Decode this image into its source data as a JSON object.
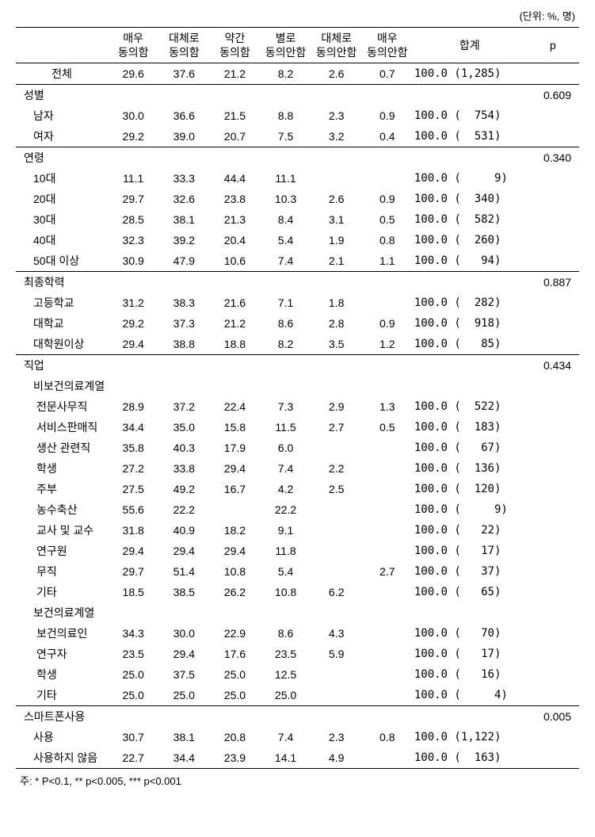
{
  "unit_label": "(단위: %, 명)",
  "headers": {
    "blank": "",
    "c1": "매우\n동의함",
    "c2": "대체로\n동의함",
    "c3": "약간\n동의함",
    "c4": "별로\n동의안함",
    "c5": "대체로\n동의안함",
    "c6": "매우\n동의안함",
    "sum": "합계",
    "p": "p"
  },
  "total_row": {
    "label": "전체",
    "v": [
      "29.6",
      "37.6",
      "21.2",
      "8.2",
      "2.6",
      "0.7"
    ],
    "sum": "100.0 (1,285)",
    "p": ""
  },
  "sections": [
    {
      "header": "성별",
      "p": "0.609",
      "rows": [
        {
          "label": "남자",
          "indent": 1,
          "v": [
            "30.0",
            "36.6",
            "21.5",
            "8.8",
            "2.3",
            "0.9"
          ],
          "sum": "100.0 (  754)"
        },
        {
          "label": "여자",
          "indent": 1,
          "v": [
            "29.2",
            "39.0",
            "20.7",
            "7.5",
            "3.2",
            "0.4"
          ],
          "sum": "100.0 (  531)"
        }
      ]
    },
    {
      "header": "연령",
      "p": "0.340",
      "rows": [
        {
          "label": "10대",
          "indent": 1,
          "v": [
            "11.1",
            "33.3",
            "44.4",
            "11.1",
            "",
            ""
          ],
          "sum": "100.0 (     9)"
        },
        {
          "label": "20대",
          "indent": 1,
          "v": [
            "29.7",
            "32.6",
            "23.8",
            "10.3",
            "2.6",
            "0.9"
          ],
          "sum": "100.0 (  340)"
        },
        {
          "label": "30대",
          "indent": 1,
          "v": [
            "28.5",
            "38.1",
            "21.3",
            "8.4",
            "3.1",
            "0.5"
          ],
          "sum": "100.0 (  582)"
        },
        {
          "label": "40대",
          "indent": 1,
          "v": [
            "32.3",
            "39.2",
            "20.4",
            "5.4",
            "1.9",
            "0.8"
          ],
          "sum": "100.0 (  260)"
        },
        {
          "label": "50대 이상",
          "indent": 1,
          "v": [
            "30.9",
            "47.9",
            "10.6",
            "7.4",
            "2.1",
            "1.1"
          ],
          "sum": "100.0 (   94)"
        }
      ]
    },
    {
      "header": "최종학력",
      "p": "0.887",
      "rows": [
        {
          "label": "고등학교",
          "indent": 1,
          "v": [
            "31.2",
            "38.3",
            "21.6",
            "7.1",
            "1.8",
            ""
          ],
          "sum": "100.0 (  282)"
        },
        {
          "label": "대학교",
          "indent": 1,
          "v": [
            "29.2",
            "37.3",
            "21.2",
            "8.6",
            "2.8",
            "0.9"
          ],
          "sum": "100.0 (  918)"
        },
        {
          "label": "대학원이상",
          "indent": 1,
          "v": [
            "29.4",
            "38.8",
            "18.8",
            "8.2",
            "3.5",
            "1.2"
          ],
          "sum": "100.0 (   85)"
        }
      ]
    },
    {
      "header": "직업",
      "p": "0.434",
      "subgroups": [
        {
          "label": "비보건의료계열",
          "rows": [
            {
              "label": "전문사무직",
              "indent": 2,
              "v": [
                "28.9",
                "37.2",
                "22.4",
                "7.3",
                "2.9",
                "1.3"
              ],
              "sum": "100.0 (  522)"
            },
            {
              "label": "서비스판매직",
              "indent": 2,
              "v": [
                "34.4",
                "35.0",
                "15.8",
                "11.5",
                "2.7",
                "0.5"
              ],
              "sum": "100.0 (  183)"
            },
            {
              "label": "생산 관련직",
              "indent": 2,
              "v": [
                "35.8",
                "40.3",
                "17.9",
                "6.0",
                "",
                ""
              ],
              "sum": "100.0 (   67)"
            },
            {
              "label": "학생",
              "indent": 2,
              "v": [
                "27.2",
                "33.8",
                "29.4",
                "7.4",
                "2.2",
                ""
              ],
              "sum": "100.0 (  136)"
            },
            {
              "label": "주부",
              "indent": 2,
              "v": [
                "27.5",
                "49.2",
                "16.7",
                "4.2",
                "2.5",
                ""
              ],
              "sum": "100.0 (  120)"
            },
            {
              "label": "농수축산",
              "indent": 2,
              "v": [
                "55.6",
                "22.2",
                "",
                "22.2",
                "",
                ""
              ],
              "sum": "100.0 (     9)"
            },
            {
              "label": "교사 및 교수",
              "indent": 2,
              "v": [
                "31.8",
                "40.9",
                "18.2",
                "9.1",
                "",
                ""
              ],
              "sum": "100.0 (   22)"
            },
            {
              "label": "연구원",
              "indent": 2,
              "v": [
                "29.4",
                "29.4",
                "29.4",
                "11.8",
                "",
                ""
              ],
              "sum": "100.0 (   17)"
            },
            {
              "label": "무직",
              "indent": 2,
              "v": [
                "29.7",
                "51.4",
                "10.8",
                "5.4",
                "",
                "2.7"
              ],
              "sum": "100.0 (   37)"
            },
            {
              "label": "기타",
              "indent": 2,
              "v": [
                "18.5",
                "38.5",
                "26.2",
                "10.8",
                "6.2",
                ""
              ],
              "sum": "100.0 (   65)"
            }
          ]
        },
        {
          "label": "보건의료계열",
          "rows": [
            {
              "label": "보건의료인",
              "indent": 2,
              "v": [
                "34.3",
                "30.0",
                "22.9",
                "8.6",
                "4.3",
                ""
              ],
              "sum": "100.0 (   70)"
            },
            {
              "label": "연구자",
              "indent": 2,
              "v": [
                "23.5",
                "29.4",
                "17.6",
                "23.5",
                "5.9",
                ""
              ],
              "sum": "100.0 (   17)"
            },
            {
              "label": "학생",
              "indent": 2,
              "v": [
                "25.0",
                "37.5",
                "25.0",
                "12.5",
                "",
                ""
              ],
              "sum": "100.0 (   16)"
            },
            {
              "label": "기타",
              "indent": 2,
              "v": [
                "25.0",
                "25.0",
                "25.0",
                "25.0",
                "",
                ""
              ],
              "sum": "100.0 (     4)"
            }
          ]
        }
      ]
    },
    {
      "header": "스마트폰사용",
      "p": "0.005",
      "rows": [
        {
          "label": "사용",
          "indent": 1,
          "v": [
            "30.7",
            "38.1",
            "20.8",
            "7.4",
            "2.3",
            "0.8"
          ],
          "sum": "100.0 (1,122)"
        },
        {
          "label": "사용하지 않음",
          "indent": 1,
          "v": [
            "22.7",
            "34.4",
            "23.9",
            "14.1",
            "4.9",
            ""
          ],
          "sum": "100.0 (  163)"
        }
      ]
    }
  ],
  "footnote": "주: * P<0.1, ** p<0.005, *** p<0.001"
}
